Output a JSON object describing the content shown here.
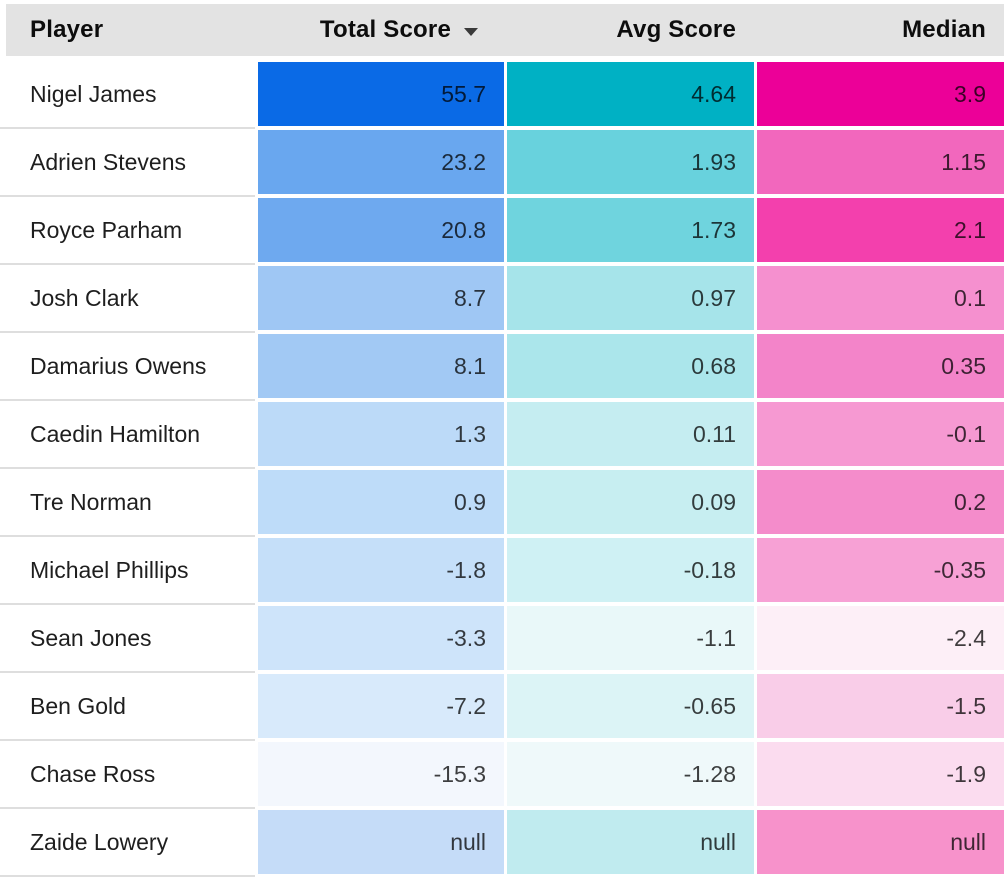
{
  "table": {
    "columns": [
      {
        "key": "player",
        "label": "Player",
        "sortable": true
      },
      {
        "key": "total",
        "label": "Total Score",
        "sortable": true,
        "sorted": "descending"
      },
      {
        "key": "avg",
        "label": "Avg Score",
        "sortable": true
      },
      {
        "key": "median",
        "label": "Median",
        "sortable": true
      }
    ],
    "rows": [
      {
        "player": "Nigel James",
        "total": "55.7",
        "avg": "4.64",
        "median": "3.9",
        "colors": {
          "total": "#0a6ae6",
          "avg": "#00b1c4",
          "median": "#ec0098"
        }
      },
      {
        "player": "Adrien Stevens",
        "total": "23.2",
        "avg": "1.93",
        "median": "1.15",
        "colors": {
          "total": "#69a7ef",
          "avavg": "",
          "avg": "#68d2dd",
          "median": "#f267bd"
        }
      },
      {
        "player": "Royce Parham",
        "total": "20.8",
        "avg": "1.73",
        "median": "2.1",
        "colors": {
          "total": "#6ea9ef",
          "avg": "#6fd4de",
          "median": "#f340ad"
        }
      },
      {
        "player": "Josh Clark",
        "total": "8.7",
        "avg": "0.97",
        "median": "0.1",
        "colors": {
          "total": "#9fc7f4",
          "avg": "#a6e4ea",
          "median": "#f590cf"
        }
      },
      {
        "player": "Damarius Owens",
        "total": "8.1",
        "avg": "0.68",
        "median": "0.35",
        "colors": {
          "total": "#a2c9f4",
          "avg": "#abe6eb",
          "median": "#f384c9"
        }
      },
      {
        "player": "Caedin Hamilton",
        "total": "1.3",
        "avg": "0.11",
        "median": "-0.1",
        "colors": {
          "total": "#bcdaf8",
          "avg": "#c5edf1",
          "median": "#f699d2"
        }
      },
      {
        "player": "Tre Norman",
        "total": "0.9",
        "avg": "0.09",
        "median": "0.2",
        "colors": {
          "total": "#bedcf9",
          "avg": "#c7eef1",
          "median": "#f48ccb"
        }
      },
      {
        "player": "Michael Phillips",
        "total": "-1.8",
        "avg": "-0.18",
        "median": "-0.35",
        "colors": {
          "total": "#c5dff9",
          "avg": "#cff1f4",
          "median": "#f7a1d5"
        }
      },
      {
        "player": "Sean Jones",
        "total": "-3.3",
        "avg": "-1.1",
        "median": "-2.4",
        "colors": {
          "total": "#cee4fa",
          "avg": "#e9f8f9",
          "median": "#fdeff7"
        }
      },
      {
        "player": "Ben Gold",
        "total": "-7.2",
        "avg": "-0.65",
        "median": "-1.5",
        "colors": {
          "total": "#d8eafb",
          "avg": "#dcf4f6",
          "median": "#f9cde8"
        }
      },
      {
        "player": "Chase Ross",
        "total": "-15.3",
        "avg": "-1.28",
        "median": "-1.9",
        "colors": {
          "total": "#f3f7fd",
          "avg": "#eff9fa",
          "median": "#fbdcef"
        }
      },
      {
        "player": "Zaide Lowery",
        "total": "null",
        "avg": "null",
        "median": "null",
        "colors": {
          "total": "#c5dcf8",
          "avg": "#c0ebef",
          "median": "#f792cb"
        }
      }
    ],
    "style": {
      "header_bg": "#e3e3e3",
      "row_divider": "#dedede",
      "background": "#ffffff"
    }
  }
}
